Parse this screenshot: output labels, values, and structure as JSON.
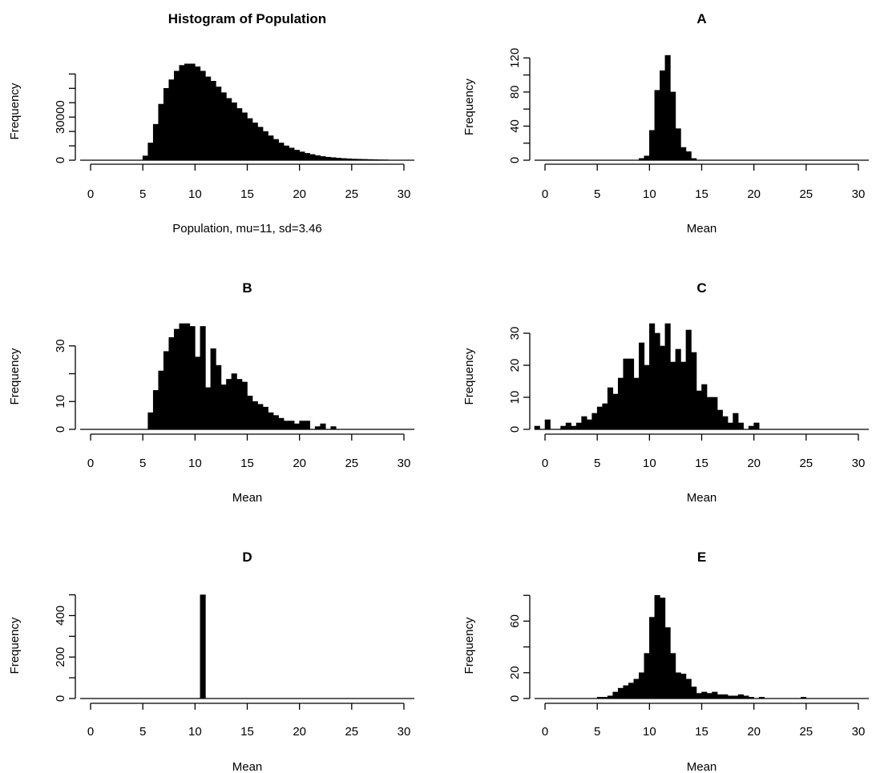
{
  "chart_data": [
    {
      "type": "bar",
      "title": "Histogram of Population",
      "xlabel": "Population, mu=11, sd=3.46",
      "ylabel": "Frequency",
      "xlim": [
        -1,
        31
      ],
      "ylim": [
        0,
        68000
      ],
      "grid": false,
      "bar_color": "#000000",
      "x_ticks": [
        0,
        5,
        10,
        15,
        20,
        25,
        30
      ],
      "y_ticks": [
        0,
        30000
      ],
      "y_ticks_labeled": [
        0,
        30000
      ],
      "y_tick_labels": [
        "0",
        "30000"
      ],
      "y_tick_labels_shown": [
        "0",
        "30000"
      ],
      "y_ticks_minor": [
        10000,
        20000,
        40000,
        50000,
        60000
      ],
      "x_tick_labels": [
        "0",
        "5",
        "10",
        "15",
        "20",
        "25",
        "30"
      ],
      "bin_width": 0.5,
      "x": [
        5,
        5.5,
        6,
        6.5,
        7,
        7.5,
        8,
        8.5,
        9,
        9.5,
        10,
        10.5,
        11,
        11.5,
        12,
        12.5,
        13,
        13.5,
        14,
        14.5,
        15,
        15.5,
        16,
        16.5,
        17,
        17.5,
        18,
        18.5,
        19,
        19.5,
        20,
        20.5,
        21,
        21.5,
        22,
        22.5,
        23,
        23.5,
        24,
        24.5,
        25,
        25.5,
        26,
        26.5,
        27,
        27.5,
        28
      ],
      "values": [
        3000,
        12000,
        25000,
        39000,
        50000,
        56000,
        62000,
        66000,
        67000,
        67000,
        65000,
        62000,
        58000,
        55000,
        51000,
        47000,
        43000,
        40000,
        36000,
        33000,
        29000,
        26000,
        23000,
        20000,
        17000,
        14500,
        12000,
        10000,
        8500,
        7000,
        5800,
        4800,
        4000,
        3200,
        2600,
        2100,
        1800,
        1500,
        1200,
        1000,
        800,
        700,
        600,
        500,
        400,
        300,
        250
      ]
    },
    {
      "type": "bar",
      "title": "A",
      "xlabel": "Mean",
      "ylabel": "Frequency",
      "xlim": [
        -1,
        31
      ],
      "ylim": [
        0,
        125
      ],
      "grid": false,
      "bar_color": "#000000",
      "x_ticks": [
        0,
        5,
        10,
        15,
        20,
        25,
        30
      ],
      "x_tick_labels": [
        "0",
        "5",
        "10",
        "15",
        "20",
        "25",
        "30"
      ],
      "y_ticks": [
        0,
        40,
        80,
        120
      ],
      "y_tick_labels": [
        "0",
        "40",
        "80",
        "120"
      ],
      "y_ticks_minor": [
        20,
        60,
        100
      ],
      "bin_width": 0.5,
      "x": [
        9,
        9.5,
        10,
        10.5,
        11,
        11.5,
        12,
        12.5,
        13,
        13.5,
        14
      ],
      "values": [
        2,
        5,
        35,
        82,
        105,
        123,
        80,
        37,
        15,
        10,
        2
      ]
    },
    {
      "type": "bar",
      "title": "B",
      "xlabel": "Mean",
      "ylabel": "Frequency",
      "xlim": [
        -1,
        31
      ],
      "ylim": [
        0,
        38
      ],
      "grid": false,
      "bar_color": "#000000",
      "x_ticks": [
        0,
        5,
        10,
        15,
        20,
        25,
        30
      ],
      "x_tick_labels": [
        "0",
        "5",
        "10",
        "15",
        "20",
        "25",
        "30"
      ],
      "y_ticks": [
        0,
        10,
        30
      ],
      "y_tick_labels": [
        "0",
        "10",
        "30"
      ],
      "y_ticks_minor": [
        20
      ],
      "bin_width": 0.5,
      "x": [
        5.5,
        6,
        6.5,
        7,
        7.5,
        8,
        8.5,
        9,
        9.5,
        10,
        10.5,
        11,
        11.5,
        12,
        12.5,
        13,
        13.5,
        14,
        14.5,
        15,
        15.5,
        16,
        16.5,
        17,
        17.5,
        18,
        18.5,
        19,
        19.5,
        20,
        20.5,
        21,
        21.5,
        22,
        22.5,
        23
      ],
      "values": [
        6,
        14,
        21,
        28,
        33,
        36,
        38,
        38,
        37,
        26,
        37,
        15,
        29,
        23,
        16,
        18,
        20,
        18,
        17,
        12,
        10,
        9,
        8,
        6,
        5,
        4,
        3,
        3,
        2,
        3,
        3,
        0,
        1,
        2,
        0,
        1
      ]
    },
    {
      "type": "bar",
      "title": "C",
      "xlabel": "Mean",
      "ylabel": "Frequency",
      "xlim": [
        -1,
        31
      ],
      "ylim": [
        0,
        33
      ],
      "grid": false,
      "bar_color": "#000000",
      "x_ticks": [
        0,
        5,
        10,
        15,
        20,
        25,
        30
      ],
      "x_tick_labels": [
        "0",
        "5",
        "10",
        "15",
        "20",
        "25",
        "30"
      ],
      "y_ticks": [
        0,
        10,
        20,
        30
      ],
      "y_tick_labels": [
        "0",
        "10",
        "20",
        "30"
      ],
      "bin_width": 0.5,
      "x": [
        -1,
        -0.5,
        0,
        0.5,
        1,
        1.5,
        2,
        2.5,
        3,
        3.5,
        4,
        4.5,
        5,
        5.5,
        6,
        6.5,
        7,
        7.5,
        8,
        8.5,
        9,
        9.5,
        10,
        10.5,
        11,
        11.5,
        12,
        12.5,
        13,
        13.5,
        14,
        14.5,
        15,
        15.5,
        16,
        16.5,
        17,
        17.5,
        18,
        18.5,
        19,
        19.5,
        20,
        20.5,
        21
      ],
      "values": [
        1,
        0,
        3,
        0,
        0,
        1,
        2,
        1,
        2,
        4,
        3,
        5,
        7,
        8,
        13,
        11,
        16,
        22,
        22,
        16,
        27,
        20,
        33,
        30,
        26,
        33,
        21,
        25,
        21,
        31,
        24,
        12,
        14,
        10,
        10,
        6,
        4,
        2,
        5,
        2,
        0,
        1,
        2,
        0,
        0
      ]
    },
    {
      "type": "bar",
      "title": "D",
      "xlabel": "Mean",
      "ylabel": "Frequency",
      "xlim": [
        -1,
        31
      ],
      "ylim": [
        0,
        510
      ],
      "grid": false,
      "bar_color": "#000000",
      "x_ticks": [
        0,
        5,
        10,
        15,
        20,
        25,
        30
      ],
      "x_tick_labels": [
        "0",
        "5",
        "10",
        "15",
        "20",
        "25",
        "30"
      ],
      "y_ticks": [
        0,
        200,
        400
      ],
      "y_tick_labels": [
        "0",
        "200",
        "400"
      ],
      "y_ticks_minor": [
        100,
        300,
        500
      ],
      "bin_width": 0.5,
      "x": [
        10.5
      ],
      "values": [
        500
      ]
    },
    {
      "type": "bar",
      "title": "E",
      "xlabel": "Mean",
      "ylabel": "Frequency",
      "xlim": [
        -1,
        31
      ],
      "ylim": [
        0,
        82
      ],
      "grid": false,
      "bar_color": "#000000",
      "x_ticks": [
        0,
        5,
        10,
        15,
        20,
        25,
        30
      ],
      "x_tick_labels": [
        "0",
        "5",
        "10",
        "15",
        "20",
        "25",
        "30"
      ],
      "y_ticks": [
        0,
        20,
        60
      ],
      "y_tick_labels": [
        "0",
        "20",
        "60"
      ],
      "y_ticks_minor": [
        40,
        80
      ],
      "bin_width": 0.5,
      "x": [
        5,
        5.5,
        6,
        6.5,
        7,
        7.5,
        8,
        8.5,
        9,
        9.5,
        10,
        10.5,
        11,
        11.5,
        12,
        12.5,
        13,
        13.5,
        14,
        14.5,
        15,
        15.5,
        16,
        16.5,
        17,
        17.5,
        18,
        18.5,
        19,
        19.5,
        20,
        20.5,
        21,
        24.5
      ],
      "values": [
        1,
        1,
        2,
        5,
        8,
        10,
        12,
        15,
        20,
        35,
        63,
        80,
        78,
        55,
        35,
        20,
        19,
        15,
        9,
        4,
        5,
        4,
        5,
        3,
        3,
        2,
        2,
        3,
        2,
        1,
        0,
        1,
        0,
        1
      ]
    }
  ]
}
